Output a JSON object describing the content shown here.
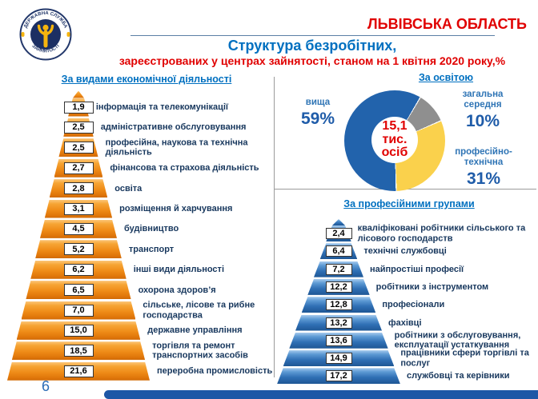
{
  "header": {
    "region": "ЛЬВІВСЬКА ОБЛАСТЬ",
    "title": "Структура безробітних,",
    "subtitle": "зареєстрованих у центрах зайнятості, станом на 1 квітня 2020 року,%"
  },
  "logo": {
    "ring_top": "ДЕРЖАВНА СЛУЖБА",
    "ring_bottom": "ЗАЙНЯТОСТІ"
  },
  "footer": {
    "page_number": "6"
  },
  "colors": {
    "accent_red": "#E00000",
    "accent_blue": "#0070C0",
    "navy_text": "#17375D",
    "orange_bar": "#F08A1D",
    "blue_bar": "#2E6DB4",
    "footer_bar": "#1D57A6",
    "pie_blue": "#2263AC",
    "pie_gray": "#8F8F8F",
    "pie_yellow": "#FAD14C"
  },
  "chart_data": [
    {
      "type": "bar",
      "shape": "pyramid",
      "title": "За видами економічної діяльності",
      "unit": "%",
      "categories": [
        "інформація та телекомунікації",
        "адміністративне обслуговування",
        "професійна, наукова та технічна діяльність",
        "фінансова та страхова діяльність",
        "освіта",
        "розміщення й харчування",
        "будівництво",
        "транспорт",
        "інші види діяльності",
        "охорона здоров’я",
        "сільське, лісове та рибне господарства",
        "державне управління",
        "торгівля та ремонт транспортних засобів",
        "переробна промисловість"
      ],
      "values": [
        1.9,
        2.5,
        2.5,
        2.7,
        2.8,
        3.1,
        4.5,
        5.2,
        6.2,
        6.5,
        7.0,
        15.0,
        18.5,
        21.6
      ]
    },
    {
      "type": "pie",
      "title": "За освітою",
      "center_lines": [
        "15,1",
        "тис.",
        "осіб"
      ],
      "slices": [
        {
          "label": "вища",
          "value": 59,
          "pct_label": "59%",
          "color": "#2263AC"
        },
        {
          "label": "загальна середня",
          "value": 10,
          "pct_label": "10%",
          "color": "#8F8F8F"
        },
        {
          "label": "професійно-технічна",
          "value": 31,
          "pct_label": "31%",
          "color": "#FAD14C"
        }
      ],
      "start_angle_deg": 30,
      "draw_order": [
        1,
        2,
        0
      ],
      "legend_position": "outside"
    },
    {
      "type": "bar",
      "shape": "pyramid",
      "title": "За професійними групами",
      "unit": "%",
      "categories": [
        "кваліфіковані робітники сільського та лісового господарств",
        "технічні службовці",
        "найпростіші професії",
        "робітники з інструментом",
        "професіонали",
        "фахівці",
        "робітники з обслуговування, експлуатації устаткування",
        "працівники сфери торгівлі та послуг",
        "службовці та керівники"
      ],
      "values": [
        2.4,
        6.4,
        7.2,
        12.2,
        12.8,
        13.2,
        13.6,
        14.9,
        17.2
      ]
    }
  ]
}
